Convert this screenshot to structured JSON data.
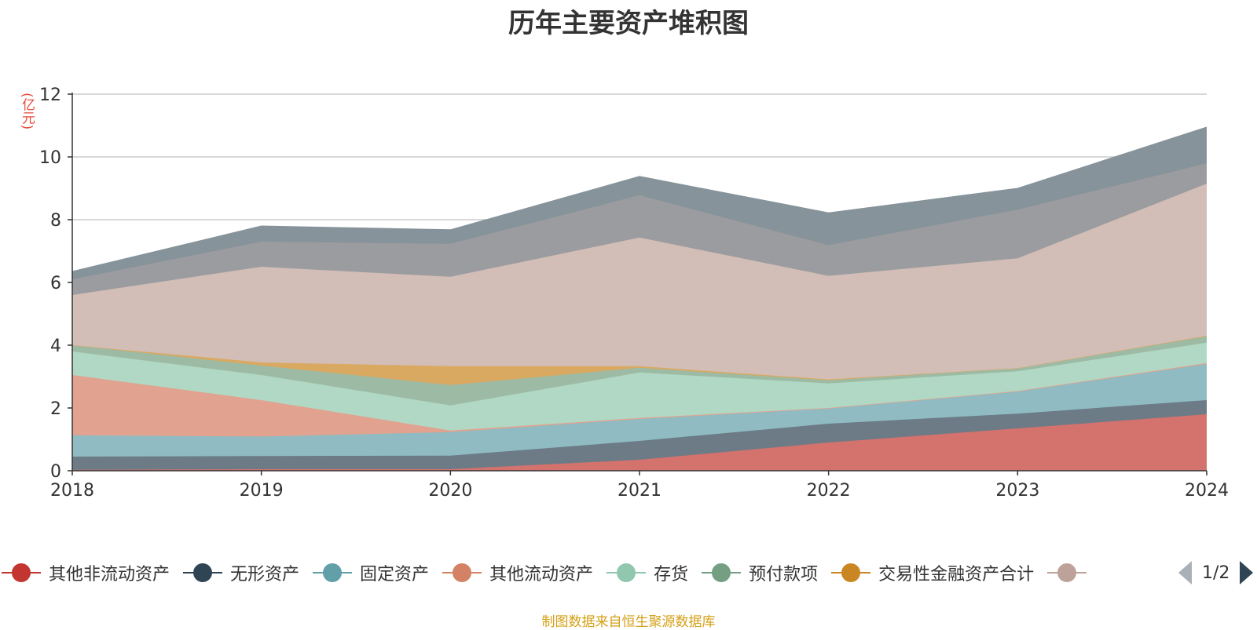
{
  "chart_data": {
    "type": "area",
    "stacked": true,
    "title": "历年主要资产堆积图",
    "ylabel": "(亿元)",
    "xlabel": "",
    "x": [
      "2018",
      "2019",
      "2020",
      "2021",
      "2022",
      "2023",
      "2024"
    ],
    "ylim": [
      0,
      12
    ],
    "yticks": [
      "0",
      "2",
      "4",
      "6",
      "8",
      "10",
      "12"
    ],
    "grid": true,
    "series": [
      {
        "name": "其他非流动资产",
        "color": "#c23531",
        "fill": "#d4726e",
        "values": [
          0.03,
          0.05,
          0.05,
          0.35,
          0.9,
          1.35,
          1.8
        ]
      },
      {
        "name": "无形资产",
        "color": "#2f4554",
        "fill": "#6c7b86",
        "values": [
          0.42,
          0.42,
          0.43,
          0.6,
          0.6,
          0.47,
          0.45
        ]
      },
      {
        "name": "固定资产",
        "color": "#61a0a8",
        "fill": "#90bbc2",
        "values": [
          0.68,
          0.62,
          0.75,
          0.7,
          0.48,
          0.7,
          1.15
        ]
      },
      {
        "name": "其他流动资产",
        "color": "#d48265",
        "fill": "#e1a38f",
        "values": [
          1.92,
          1.16,
          0.05,
          0.03,
          0.02,
          0.02,
          0.03
        ]
      },
      {
        "name": "存货",
        "color": "#91c7ae",
        "fill": "#b0d8c4",
        "values": [
          0.75,
          0.8,
          0.8,
          1.45,
          0.78,
          0.63,
          0.65
        ]
      },
      {
        "name": "预付款项",
        "color": "#749f83",
        "fill": "#9dbba4",
        "values": [
          0.2,
          0.3,
          0.65,
          0.15,
          0.1,
          0.1,
          0.2
        ]
      },
      {
        "name": "交易性金融资产合计",
        "color": "#ca8622",
        "fill": "#d9a961",
        "values": [
          0.0,
          0.1,
          0.6,
          0.05,
          0.03,
          0.0,
          0.02
        ]
      },
      {
        "name": "",
        "color": "#bda29a",
        "fill": "#d2bdb7",
        "values": [
          1.6,
          3.05,
          2.85,
          4.1,
          3.3,
          3.5,
          4.85
        ]
      },
      {
        "name": "",
        "color": "#6e7074",
        "fill": "#9a9c9f",
        "values": [
          0.5,
          0.8,
          1.05,
          1.35,
          0.98,
          1.55,
          0.65
        ]
      },
      {
        "name": "",
        "color": "#546570",
        "fill": "#86939a",
        "values": [
          0.25,
          0.5,
          0.45,
          0.6,
          1.03,
          0.68,
          1.15
        ]
      }
    ]
  },
  "legend": {
    "items": [
      {
        "label": "其他非流动资产",
        "icon": "circle-marker",
        "color": "#c23531"
      },
      {
        "label": "无形资产",
        "icon": "circle-marker",
        "color": "#2f4554"
      },
      {
        "label": "固定资产",
        "icon": "circle-marker",
        "color": "#61a0a8"
      },
      {
        "label": "其他流动资产",
        "icon": "circle-marker",
        "color": "#d48265"
      },
      {
        "label": "存货",
        "icon": "circle-marker",
        "color": "#91c7ae"
      },
      {
        "label": "预付款项",
        "icon": "circle-marker",
        "color": "#749f83"
      },
      {
        "label": "交易性金融资产合计",
        "icon": "circle-marker",
        "color": "#ca8622"
      },
      {
        "label": "",
        "icon": "circle-marker",
        "color": "#bda29a"
      }
    ],
    "page": "1/2"
  },
  "source": "制图数据来自恒生聚源数据库"
}
